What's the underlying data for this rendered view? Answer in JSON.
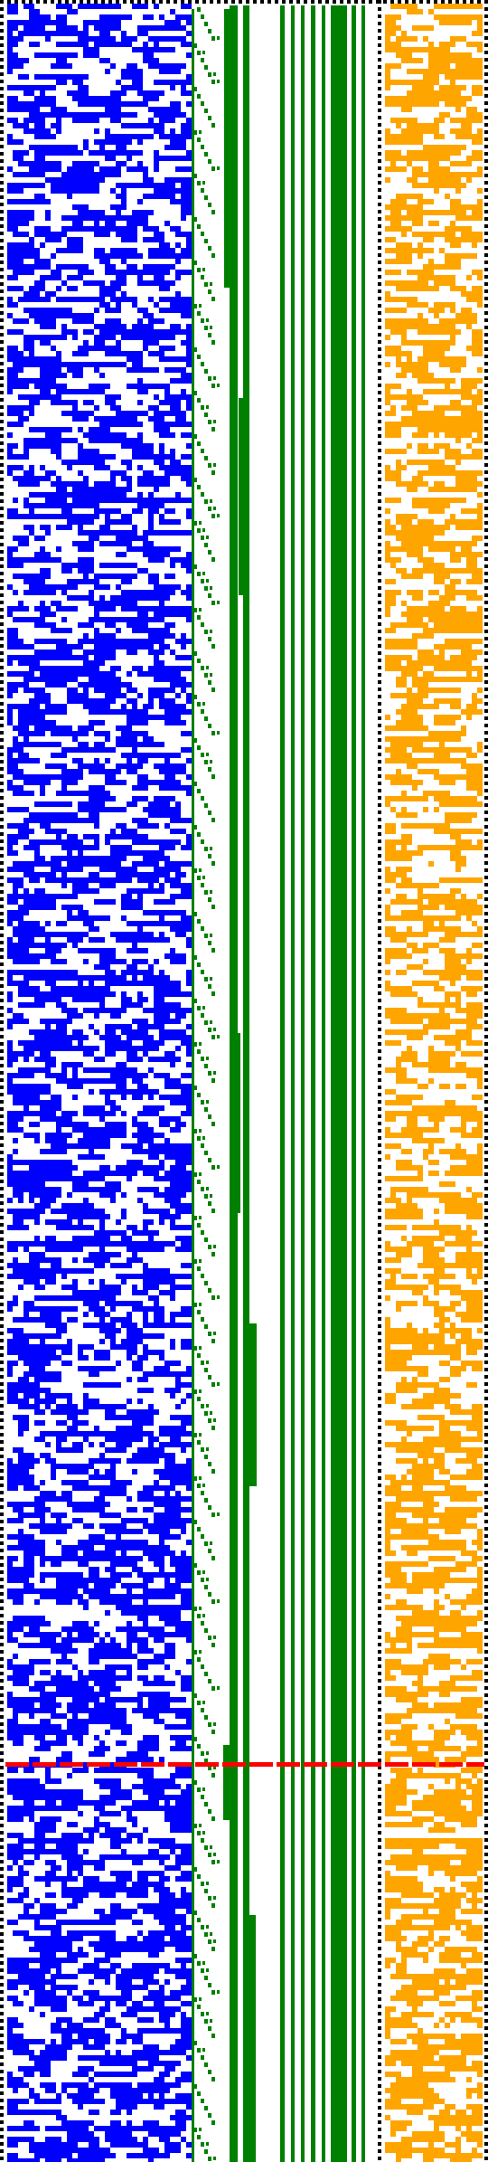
{
  "colors": {
    "blue": "#0000ff",
    "green": "#008000",
    "orange": "#ffa500",
    "red": "#ff0000",
    "black": "#000000",
    "background": "#ffffff"
  }
}
